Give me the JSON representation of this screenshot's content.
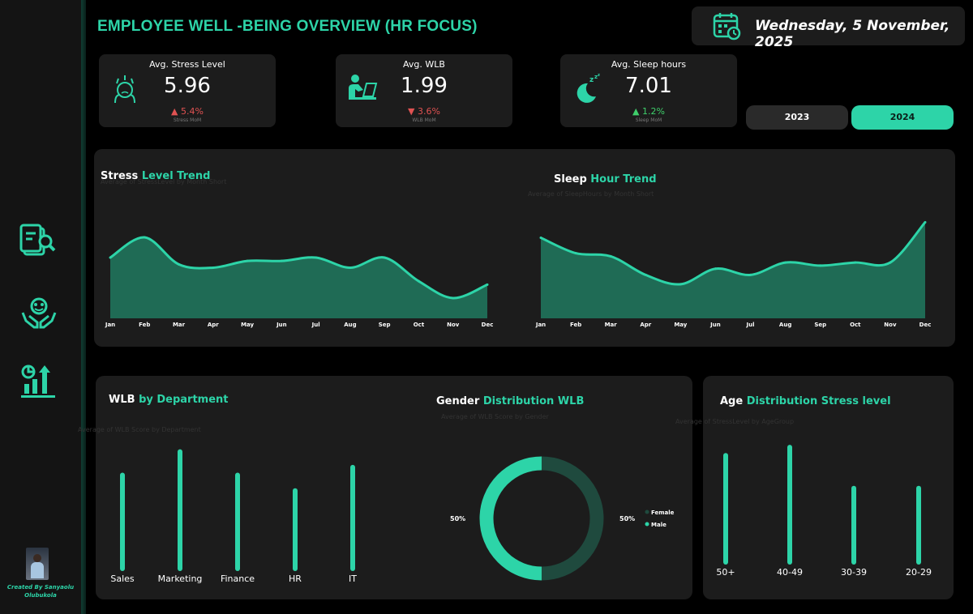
{
  "header": {
    "title": "EMPLOYEE WELL -BEING OVERVIEW (HR FOCUS)",
    "date": "Wednesday, 5 November, 2025"
  },
  "kpis": [
    {
      "label": "Avg. Stress Level",
      "value": "5.96",
      "delta": "▲ 5.4%",
      "sub": "Stress MoM",
      "trend": "up-bad",
      "icon": "stress-face-icon"
    },
    {
      "label": "Avg. WLB",
      "value": "1.99",
      "delta": "▼ 3.6%",
      "sub": "WLB MoM",
      "trend": "down-bad",
      "icon": "laptop-worker-icon"
    },
    {
      "label": "Avg. Sleep hours",
      "value": "7.01",
      "delta": "▲ 1.2%",
      "sub": "Sleep MoM",
      "trend": "up-good",
      "icon": "moon-sleep-icon"
    }
  ],
  "years": {
    "y2023": "2023",
    "y2024": "2024",
    "selected": "2024"
  },
  "sidebar": {
    "icons": [
      "report-search-icon",
      "wellbeing-hands-icon",
      "growth-chart-icon"
    ],
    "creator": "Created By Sanyaolu Olubukola"
  },
  "colors": {
    "accent": "#2dd4a8",
    "area_fill": "#1f6b55",
    "donut_dark": "#1f4a3e",
    "panel": "#1c1c1c"
  },
  "chart_data": [
    {
      "type": "area",
      "title": "Stress Level Trend",
      "title_plain": "Stress ",
      "title_accent": "Level Trend",
      "subtitle": "Average of StressLevel by Month Short",
      "categories": [
        "Jan",
        "Feb",
        "Mar",
        "Apr",
        "May",
        "Jun",
        "Jul",
        "Aug",
        "Sep",
        "Oct",
        "Nov",
        "Dec"
      ],
      "values": [
        6.08,
        6.14,
        6.06,
        6.05,
        6.07,
        6.07,
        6.08,
        6.05,
        6.08,
        6.01,
        5.96,
        6.0
      ],
      "ylim": [
        5.9,
        6.2
      ]
    },
    {
      "type": "area",
      "title": "Sleep Hour Trend",
      "title_plain": "Sleep ",
      "title_accent": "Hour Trend",
      "subtitle": "Average of SleepHours by Month Short",
      "categories": [
        "Jan",
        "Feb",
        "Mar",
        "Apr",
        "May",
        "Jun",
        "Jul",
        "Aug",
        "Sep",
        "Oct",
        "Nov",
        "Dec"
      ],
      "values": [
        6.96,
        6.91,
        6.9,
        6.84,
        6.81,
        6.86,
        6.84,
        6.88,
        6.87,
        6.88,
        6.88,
        7.01
      ],
      "ylim": [
        6.7,
        7.05
      ]
    },
    {
      "type": "bar",
      "title": "WLB by Department",
      "title_plain": "WLB ",
      "title_accent": "by Department",
      "subtitle": "Average of WLB Score by Department",
      "categories": [
        "Sales",
        "Marketing",
        "Finance",
        "HR",
        "IT"
      ],
      "values": [
        2.0,
        2.03,
        2.0,
        1.98,
        2.01
      ],
      "ylim": [
        1.88,
        2.04
      ]
    },
    {
      "type": "pie",
      "title": "Gender Distribution WLB",
      "title_plain": "Gender ",
      "title_accent": "Distribution WLB",
      "subtitle": "Average of WLB Score by Gender",
      "labels": [
        "Female",
        "Male"
      ],
      "values": [
        50,
        50
      ],
      "data_labels": [
        "50%",
        "50%"
      ]
    },
    {
      "type": "bar",
      "title": "Age Distribution Stress level",
      "title_plain": "Age ",
      "title_accent": "Distribution Stress level",
      "subtitle": "Average of StressLevel by AgeGroup",
      "categories": [
        "50+",
        "40-49",
        "30-39",
        "20-29"
      ],
      "values": [
        6.06,
        6.08,
        5.98,
        5.98
      ],
      "ylim": [
        5.8,
        6.1
      ]
    }
  ]
}
